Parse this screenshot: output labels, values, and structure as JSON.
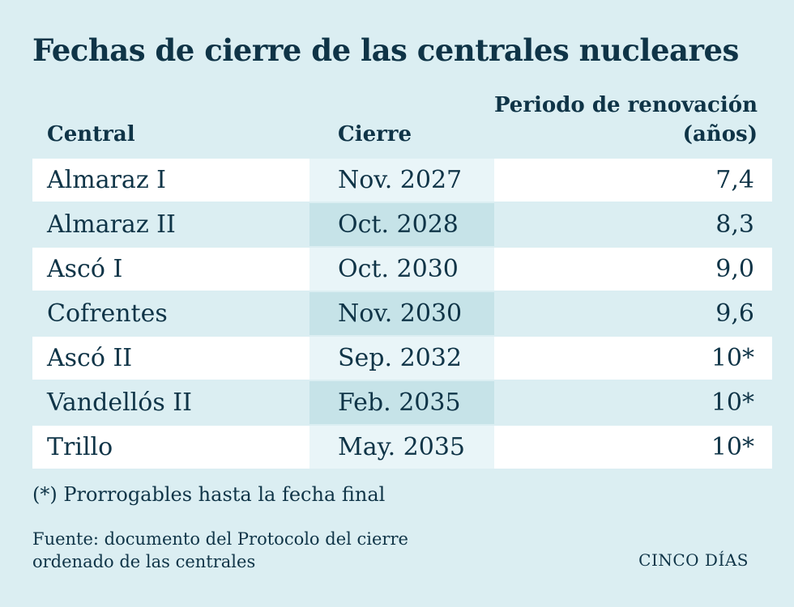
{
  "title": "Fechas de cierre de las centrales nucleares",
  "chart_data": {
    "type": "table",
    "title": "Fechas de cierre de las centrales nucleares",
    "columns": [
      "Central",
      "Cierre",
      "Periodo de renovación (años)"
    ],
    "header": {
      "central": "Central",
      "cierre": "Cierre",
      "periodo_line1": "Periodo de renovación",
      "periodo_line2": "(años)"
    },
    "rows": [
      {
        "central": "Almaraz I",
        "cierre": "Nov. 2027",
        "periodo": "7,4"
      },
      {
        "central": "Almaraz II",
        "cierre": "Oct. 2028",
        "periodo": "8,3"
      },
      {
        "central": "Ascó I",
        "cierre": "Oct. 2030",
        "periodo": "9,0"
      },
      {
        "central": "Cofrentes",
        "cierre": "Nov. 2030",
        "periodo": "9,6"
      },
      {
        "central": "Ascó II",
        "cierre": "Sep. 2032",
        "periodo": "10*"
      },
      {
        "central": "Vandellós II",
        "cierre": "Feb. 2035",
        "periodo": "10*"
      },
      {
        "central": "Trillo",
        "cierre": "May. 2035",
        "periodo": "10*"
      }
    ],
    "footnote": "(*) Prorrogables hasta la fecha final"
  },
  "source": {
    "line1": "Fuente: documento del Protocolo del cierre",
    "line2": "ordenado de las centrales"
  },
  "brand": "CINCO DÍAS",
  "colors": {
    "background": "#dbeef2",
    "text": "#0f3447",
    "row_light": "#ffffff",
    "row_light_mid": "#e9f5f8",
    "row_dark_mid": "#c6e3e8"
  }
}
